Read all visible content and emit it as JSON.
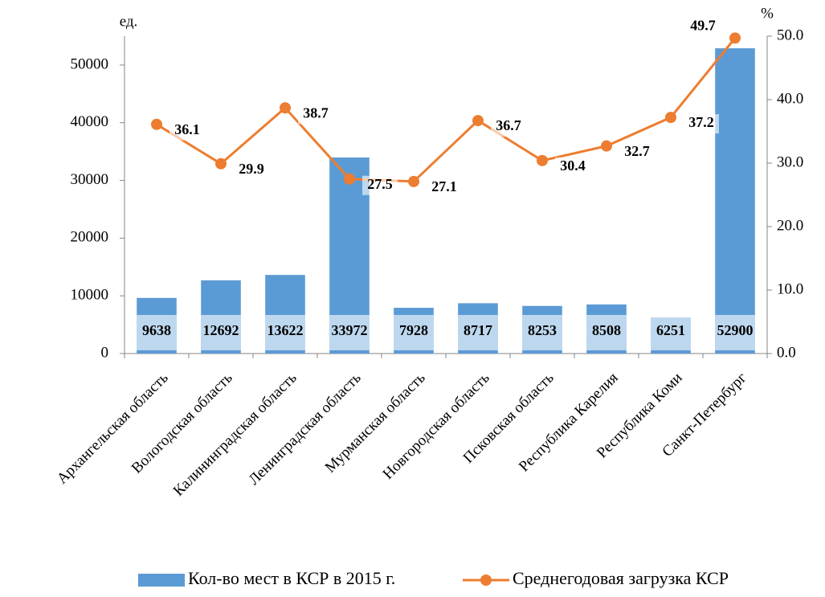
{
  "chart_data": {
    "type": "combo",
    "categories": [
      "Архангельская область",
      "Вологодская область",
      "Калининградская область",
      "Ленинградская область",
      "Мурманская область",
      "Новгородская область",
      "Псковская область",
      "Республика Карелия",
      "Республика Коми",
      "Санкт-Петербург"
    ],
    "series": [
      {
        "name": "Кол-во мест в КСР в 2015 г.",
        "type": "bar",
        "color": "#5b9bd5",
        "values": [
          9638,
          12692,
          13622,
          33972,
          7928,
          8717,
          8253,
          8508,
          6251,
          52900
        ]
      },
      {
        "name": "Среднегодовая загрузка КСР",
        "type": "line",
        "axis": "y2",
        "color": "#ed7d31",
        "values": [
          36.1,
          29.9,
          38.7,
          27.5,
          27.1,
          36.7,
          30.4,
          32.7,
          37.2,
          49.7
        ]
      }
    ],
    "y_label": "ед.",
    "y2_label": "%",
    "ylim": [
      0,
      55000
    ],
    "yticks": [
      0,
      10000,
      20000,
      30000,
      40000,
      50000
    ],
    "y2lim": [
      0,
      50
    ],
    "y2ticks": [
      {
        "value": 0,
        "label": "0.0"
      },
      {
        "value": 10,
        "label": "10.0"
      },
      {
        "value": 20,
        "label": "20.0"
      },
      {
        "value": 30,
        "label": "30.0"
      },
      {
        "value": 40,
        "label": "40.0"
      },
      {
        "value": 50,
        "label": "50.0"
      }
    ],
    "legend": "bottom"
  }
}
